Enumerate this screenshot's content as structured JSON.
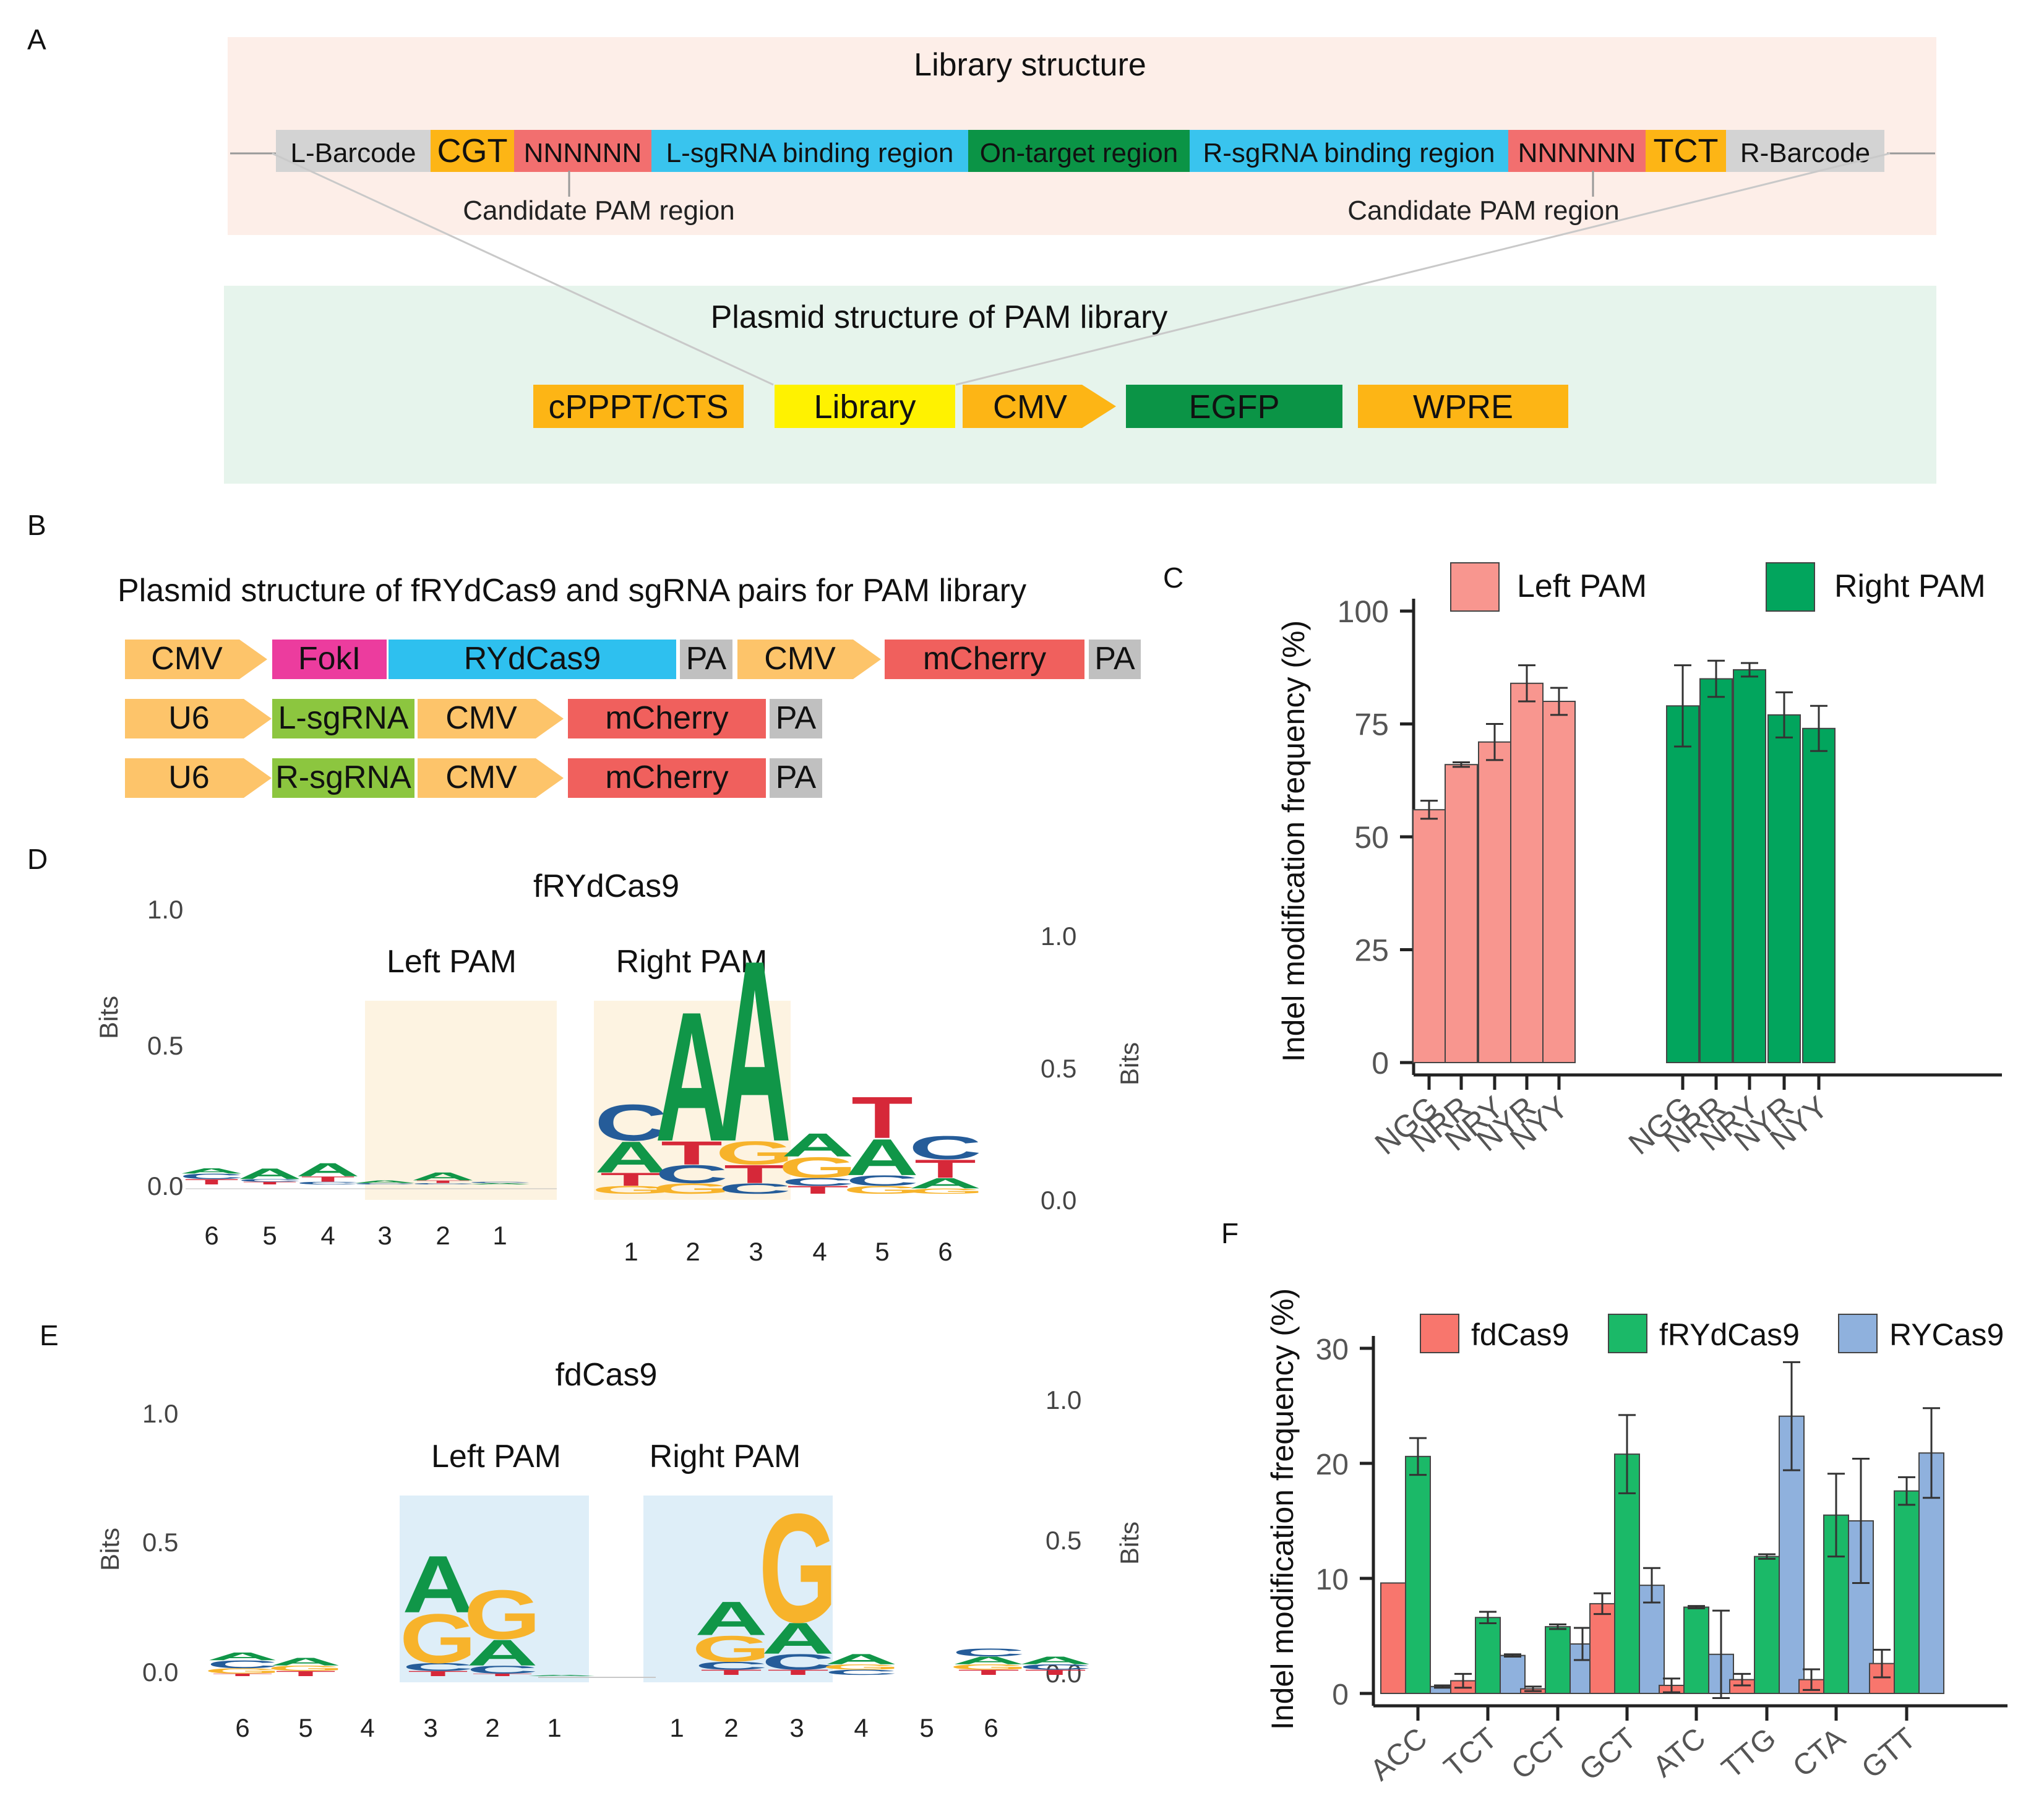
{
  "panel_labels": {
    "A": "A",
    "B": "B",
    "C": "C",
    "D": "D",
    "E": "E",
    "F": "F"
  },
  "panelA": {
    "library_title": "Library structure",
    "library_segments": [
      {
        "label": "L-Barcode",
        "color": "#d3d3d3"
      },
      {
        "label": "CGT",
        "color": "#fdb515"
      },
      {
        "label": "NNNNNN",
        "color": "#f26f6f"
      },
      {
        "label": "L-sgRNA binding region",
        "color": "#39c4ee"
      },
      {
        "label": "On-target region",
        "color": "#0b9446"
      },
      {
        "label": "R-sgRNA binding region",
        "color": "#39c4ee"
      },
      {
        "label": "NNNNNN",
        "color": "#f26f6f"
      },
      {
        "label": "TCT",
        "color": "#fdb515"
      },
      {
        "label": "R-Barcode",
        "color": "#d3d3d3"
      }
    ],
    "candidate_left": "Candidate PAM region",
    "candidate_right": "Candidate PAM region",
    "plasmid_title": "Plasmid structure of PAM library",
    "plasmid_segments": [
      {
        "label": "cPPPT/CTS",
        "color": "#fdb515"
      },
      {
        "label": "Library",
        "color": "#fff200"
      },
      {
        "label": "CMV",
        "color": "#fdb515"
      },
      {
        "label": "EGFP",
        "color": "#0b9446"
      },
      {
        "label": "WPRE",
        "color": "#fdb515"
      }
    ]
  },
  "panelB": {
    "title": "Plasmid structure of fRYdCas9 and sgRNA pairs for PAM library",
    "rows": [
      [
        {
          "label": "CMV",
          "color": "#fdc46a",
          "arrow": true
        },
        {
          "label": "FokI",
          "color": "#ec3c9e"
        },
        {
          "label": "RYdCas9",
          "color": "#2ec0ef"
        },
        {
          "label": "PA",
          "color": "#c0c0c0"
        },
        {
          "label": "CMV",
          "color": "#fdc46a",
          "arrow": true
        },
        {
          "label": "mCherry",
          "color": "#f0605d"
        },
        {
          "label": "PA",
          "color": "#c0c0c0"
        }
      ],
      [
        {
          "label": "U6",
          "color": "#fdc46a",
          "arrow": true
        },
        {
          "label": "L-sgRNA",
          "color": "#8cc63f"
        },
        {
          "label": "CMV",
          "color": "#fdc46a",
          "arrow": true
        },
        {
          "label": "mCherry",
          "color": "#f0605d"
        },
        {
          "label": "PA",
          "color": "#c0c0c0"
        }
      ],
      [
        {
          "label": "U6",
          "color": "#fdc46a",
          "arrow": true
        },
        {
          "label": "R-sgRNA",
          "color": "#8cc63f"
        },
        {
          "label": "CMV",
          "color": "#fdc46a",
          "arrow": true
        },
        {
          "label": "mCherry",
          "color": "#f0605d"
        },
        {
          "label": "PA",
          "color": "#c0c0c0"
        }
      ]
    ]
  },
  "logo_colors": {
    "A": "#109648",
    "C": "#255c99",
    "G": "#f7b32b",
    "T": "#d62839"
  },
  "panelD": {
    "title": "fRYdCas9",
    "left_label": "Left PAM",
    "right_label": "Right PAM",
    "highlight_color": "#fdf3e1",
    "y_label_left": "Bits",
    "y_label_right": "Bits",
    "y_ticks": [
      "1.0",
      "0.5",
      "0.0"
    ],
    "left_positions": [
      "6",
      "5",
      "4",
      "3",
      "2",
      "1"
    ],
    "right_positions": [
      "1",
      "2",
      "3",
      "4",
      "5",
      "6"
    ],
    "left_logo": [
      [
        {
          "b": "T",
          "h": 0.02
        },
        {
          "b": "C",
          "h": 0.02
        },
        {
          "b": "A",
          "h": 0.02
        }
      ],
      [
        {
          "b": "A",
          "h": 0.04
        },
        {
          "b": "T",
          "h": 0.01
        },
        {
          "b": "C",
          "h": 0.01
        }
      ],
      [
        {
          "b": "A",
          "h": 0.05
        },
        {
          "b": "T",
          "h": 0.02
        },
        {
          "b": "C",
          "h": 0.01
        }
      ],
      [
        {
          "b": "A",
          "h": 0.01
        },
        {
          "b": "C",
          "h": 0.005
        }
      ],
      [
        {
          "b": "A",
          "h": 0.03
        },
        {
          "b": "T",
          "h": 0.01
        },
        {
          "b": "C",
          "h": 0.005
        }
      ],
      [
        {
          "b": "A",
          "h": 0.005
        },
        {
          "b": "C",
          "h": 0.005
        }
      ]
    ],
    "right_logo": [
      [
        {
          "b": "C",
          "h": 0.14
        },
        {
          "b": "A",
          "h": 0.12
        },
        {
          "b": "T",
          "h": 0.05
        },
        {
          "b": "G",
          "h": 0.03
        }
      ],
      [
        {
          "b": "A",
          "h": 0.5
        },
        {
          "b": "C",
          "h": 0.07
        },
        {
          "b": "T",
          "h": 0.09
        },
        {
          "b": "G",
          "h": 0.04
        }
      ],
      [
        {
          "b": "A",
          "h": 0.7
        },
        {
          "b": "T",
          "h": 0.07
        },
        {
          "b": "G",
          "h": 0.09
        },
        {
          "b": "C",
          "h": 0.04
        }
      ],
      [
        {
          "b": "A",
          "h": 0.09
        },
        {
          "b": "G",
          "h": 0.08
        },
        {
          "b": "T",
          "h": 0.03
        },
        {
          "b": "C",
          "h": 0.03
        }
      ],
      [
        {
          "b": "T",
          "h": 0.16
        },
        {
          "b": "A",
          "h": 0.14
        },
        {
          "b": "C",
          "h": 0.04
        },
        {
          "b": "G",
          "h": 0.03
        }
      ],
      [
        {
          "b": "T",
          "h": 0.07
        },
        {
          "b": "C",
          "h": 0.09
        },
        {
          "b": "A",
          "h": 0.04
        },
        {
          "b": "G",
          "h": 0.02
        }
      ]
    ]
  },
  "panelE": {
    "title": "fdCas9",
    "left_label": "Left PAM",
    "right_label": "Right PAM",
    "highlight_color": "#deeef8",
    "y_label_left": "Bits",
    "y_label_right": "Bits",
    "y_ticks": [
      "1.0",
      "0.5",
      "0.0"
    ],
    "left_positions": [
      "6",
      "5",
      "4",
      "3",
      "2",
      "1"
    ],
    "right_positions": [
      "1",
      "2",
      "3",
      "4",
      "5",
      "6"
    ],
    "left_logo": [
      [
        {
          "b": "C",
          "h": 0.03
        },
        {
          "b": "A",
          "h": 0.03
        },
        {
          "b": "G",
          "h": 0.02
        },
        {
          "b": "T",
          "h": 0.01
        }
      ],
      [
        {
          "b": "A",
          "h": 0.03
        },
        {
          "b": "T",
          "h": 0.02
        },
        {
          "b": "G",
          "h": 0.02
        }
      ],
      [],
      [
        {
          "b": "A",
          "h": 0.22
        },
        {
          "b": "G",
          "h": 0.19
        },
        {
          "b": "C",
          "h": 0.03
        },
        {
          "b": "T",
          "h": 0.02
        }
      ],
      [
        {
          "b": "G",
          "h": 0.19
        },
        {
          "b": "A",
          "h": 0.1
        },
        {
          "b": "C",
          "h": 0.03
        },
        {
          "b": "T",
          "h": 0.01
        }
      ],
      [
        {
          "b": "A",
          "h": 0.005
        }
      ]
    ],
    "right_logo": [
      [
        {
          "b": "A",
          "h": 0.13
        },
        {
          "b": "G",
          "h": 0.1
        },
        {
          "b": "C",
          "h": 0.03
        },
        {
          "b": "T",
          "h": 0.02
        }
      ],
      [
        {
          "b": "G",
          "h": 0.42
        },
        {
          "b": "A",
          "h": 0.12
        },
        {
          "b": "C",
          "h": 0.06
        },
        {
          "b": "T",
          "h": 0.02
        }
      ],
      [
        {
          "b": "A",
          "h": 0.04
        },
        {
          "b": "C",
          "h": 0.02
        },
        {
          "b": "G",
          "h": 0.02
        }
      ],
      [],
      [
        {
          "b": "A",
          "h": 0.03
        },
        {
          "b": "C",
          "h": 0.03
        },
        {
          "b": "T",
          "h": 0.02
        },
        {
          "b": "G",
          "h": 0.02
        }
      ],
      [
        {
          "b": "A",
          "h": 0.03
        },
        {
          "b": "T",
          "h": 0.02
        },
        {
          "b": "C",
          "h": 0.02
        }
      ]
    ]
  },
  "chart_data": [
    {
      "type": "bar",
      "panel": "C",
      "xlabel": "",
      "ylabel": "Indel modification frequency (%)",
      "ylim": [
        0,
        100
      ],
      "yticks": [
        0,
        25,
        50,
        75,
        100
      ],
      "categories": [
        "NGG",
        "NRR",
        "NRY",
        "NYR",
        "NYY"
      ],
      "series": [
        {
          "name": "Left  PAM",
          "color": "#f8968f",
          "values": [
            56,
            66,
            71,
            84,
            80
          ],
          "errors": [
            2,
            0.5,
            4,
            4,
            3
          ]
        },
        {
          "name": "Right  PAM",
          "color": "#02a55d",
          "values": [
            79,
            85,
            87,
            77,
            74
          ],
          "errors": [
            9,
            4,
            1.5,
            5,
            5
          ]
        }
      ],
      "legend": "top"
    },
    {
      "type": "bar",
      "panel": "F",
      "xlabel": "",
      "ylabel": "Indel modification frequency (%)",
      "ylim": [
        0,
        30
      ],
      "yticks": [
        0,
        10,
        20,
        30
      ],
      "categories": [
        "ACC",
        "TCT",
        "CCT",
        "GCT",
        "ATC",
        "TTG",
        "CTA",
        "GTT"
      ],
      "series": [
        {
          "name": "fdCas9",
          "color": "#f8766d",
          "values": [
            9.6,
            1.1,
            0.4,
            7.8,
            0.7,
            1.2,
            1.2,
            2.6
          ],
          "errors": [
            0,
            0.6,
            0.2,
            0.9,
            0.6,
            0.5,
            0.9,
            1.2
          ]
        },
        {
          "name": "fRYdCas9",
          "color": "#1bb968",
          "values": [
            20.6,
            6.6,
            5.8,
            20.8,
            7.5,
            11.9,
            15.5,
            17.6
          ],
          "errors": [
            1.6,
            0.5,
            0.2,
            3.4,
            0.1,
            0.2,
            3.6,
            1.2
          ]
        },
        {
          "name": "RYCas9",
          "color": "#8fb1dd",
          "values": [
            0.6,
            3.3,
            4.3,
            9.4,
            3.4,
            24.1,
            15.0,
            20.9
          ],
          "errors": [
            0.1,
            0.1,
            1.4,
            1.5,
            3.8,
            4.7,
            5.4,
            3.9
          ]
        }
      ],
      "legend": "top"
    }
  ]
}
